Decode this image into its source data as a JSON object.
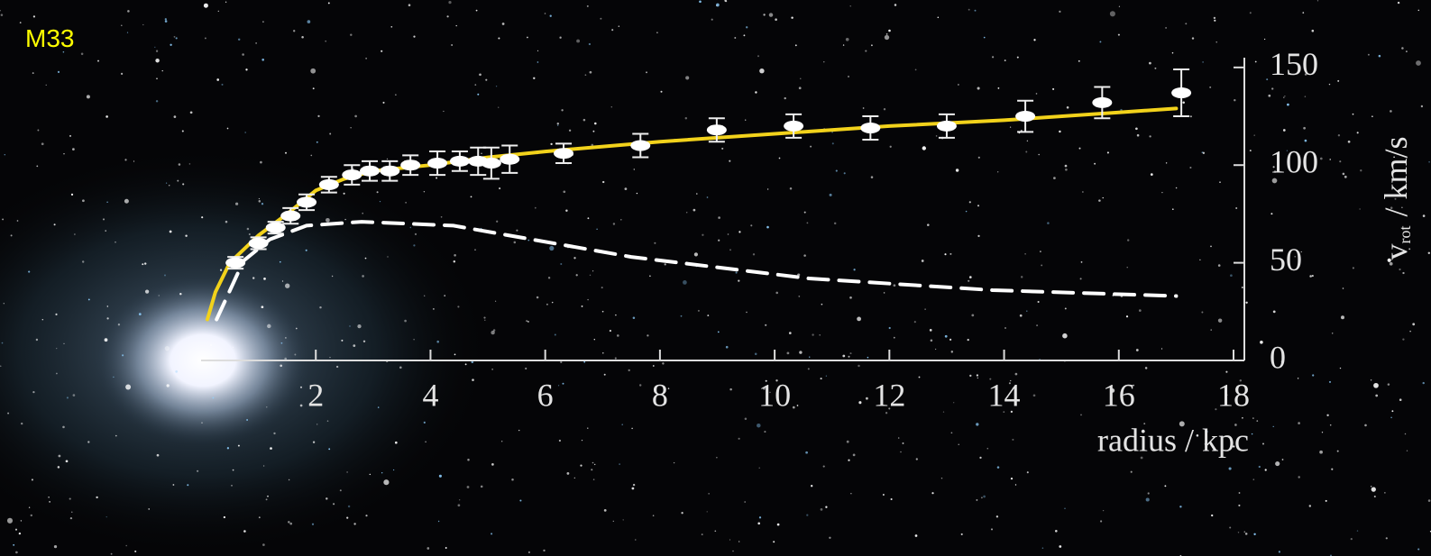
{
  "chart_data": {
    "type": "scatter",
    "title": "M33",
    "xlabel": "radius / kpc",
    "ylabel": {
      "symbol": "v",
      "subscript": "rot",
      "unit": "/ km/s"
    },
    "xlim": [
      0,
      18
    ],
    "xticks": [
      2,
      4,
      6,
      8,
      10,
      12,
      14,
      16,
      18
    ],
    "ylim": [
      0,
      155
    ],
    "yticks": [
      0,
      50,
      100,
      150
    ],
    "points": {
      "color": "#ffffff",
      "x": [
        0.6,
        1.0,
        1.3,
        1.56,
        1.84,
        2.23,
        2.63,
        2.94,
        3.29,
        3.65,
        4.12,
        4.51,
        4.83,
        5.06,
        5.38,
        6.32,
        7.66,
        8.99,
        10.33,
        11.67,
        13.0,
        14.37,
        15.71,
        17.09
      ],
      "values": [
        50,
        60,
        68,
        74,
        81,
        90,
        95,
        97,
        97,
        100,
        101,
        102,
        102,
        101,
        103,
        106,
        110,
        118,
        120,
        119,
        120,
        125,
        132,
        137
      ],
      "errors": [
        3,
        3,
        3,
        4,
        4,
        4,
        5,
        5,
        5,
        5,
        6,
        5,
        7,
        8,
        7,
        5,
        6,
        6,
        6,
        6,
        6,
        8,
        8,
        12
      ]
    },
    "lines": [
      {
        "color": "#f2d21b",
        "dashed": false,
        "x": [
          0.11,
          0.25,
          0.5,
          1,
          1.5,
          2,
          2.5,
          3,
          4,
          5,
          6,
          8,
          10,
          12,
          14,
          16,
          17
        ],
        "values": [
          21,
          35,
          50,
          64,
          75,
          87,
          93,
          97,
          100,
          104,
          107,
          112,
          116,
          120,
          123,
          127,
          129
        ]
      },
      {
        "color": "#ffffff",
        "dashed": true,
        "x": [
          0.27,
          0.74,
          1.2,
          1.84,
          2.8,
          4.4,
          7.5,
          10.6,
          13.8,
          17
        ],
        "values": [
          21,
          51,
          62,
          69,
          71,
          69,
          53,
          42,
          36,
          33
        ]
      }
    ]
  }
}
